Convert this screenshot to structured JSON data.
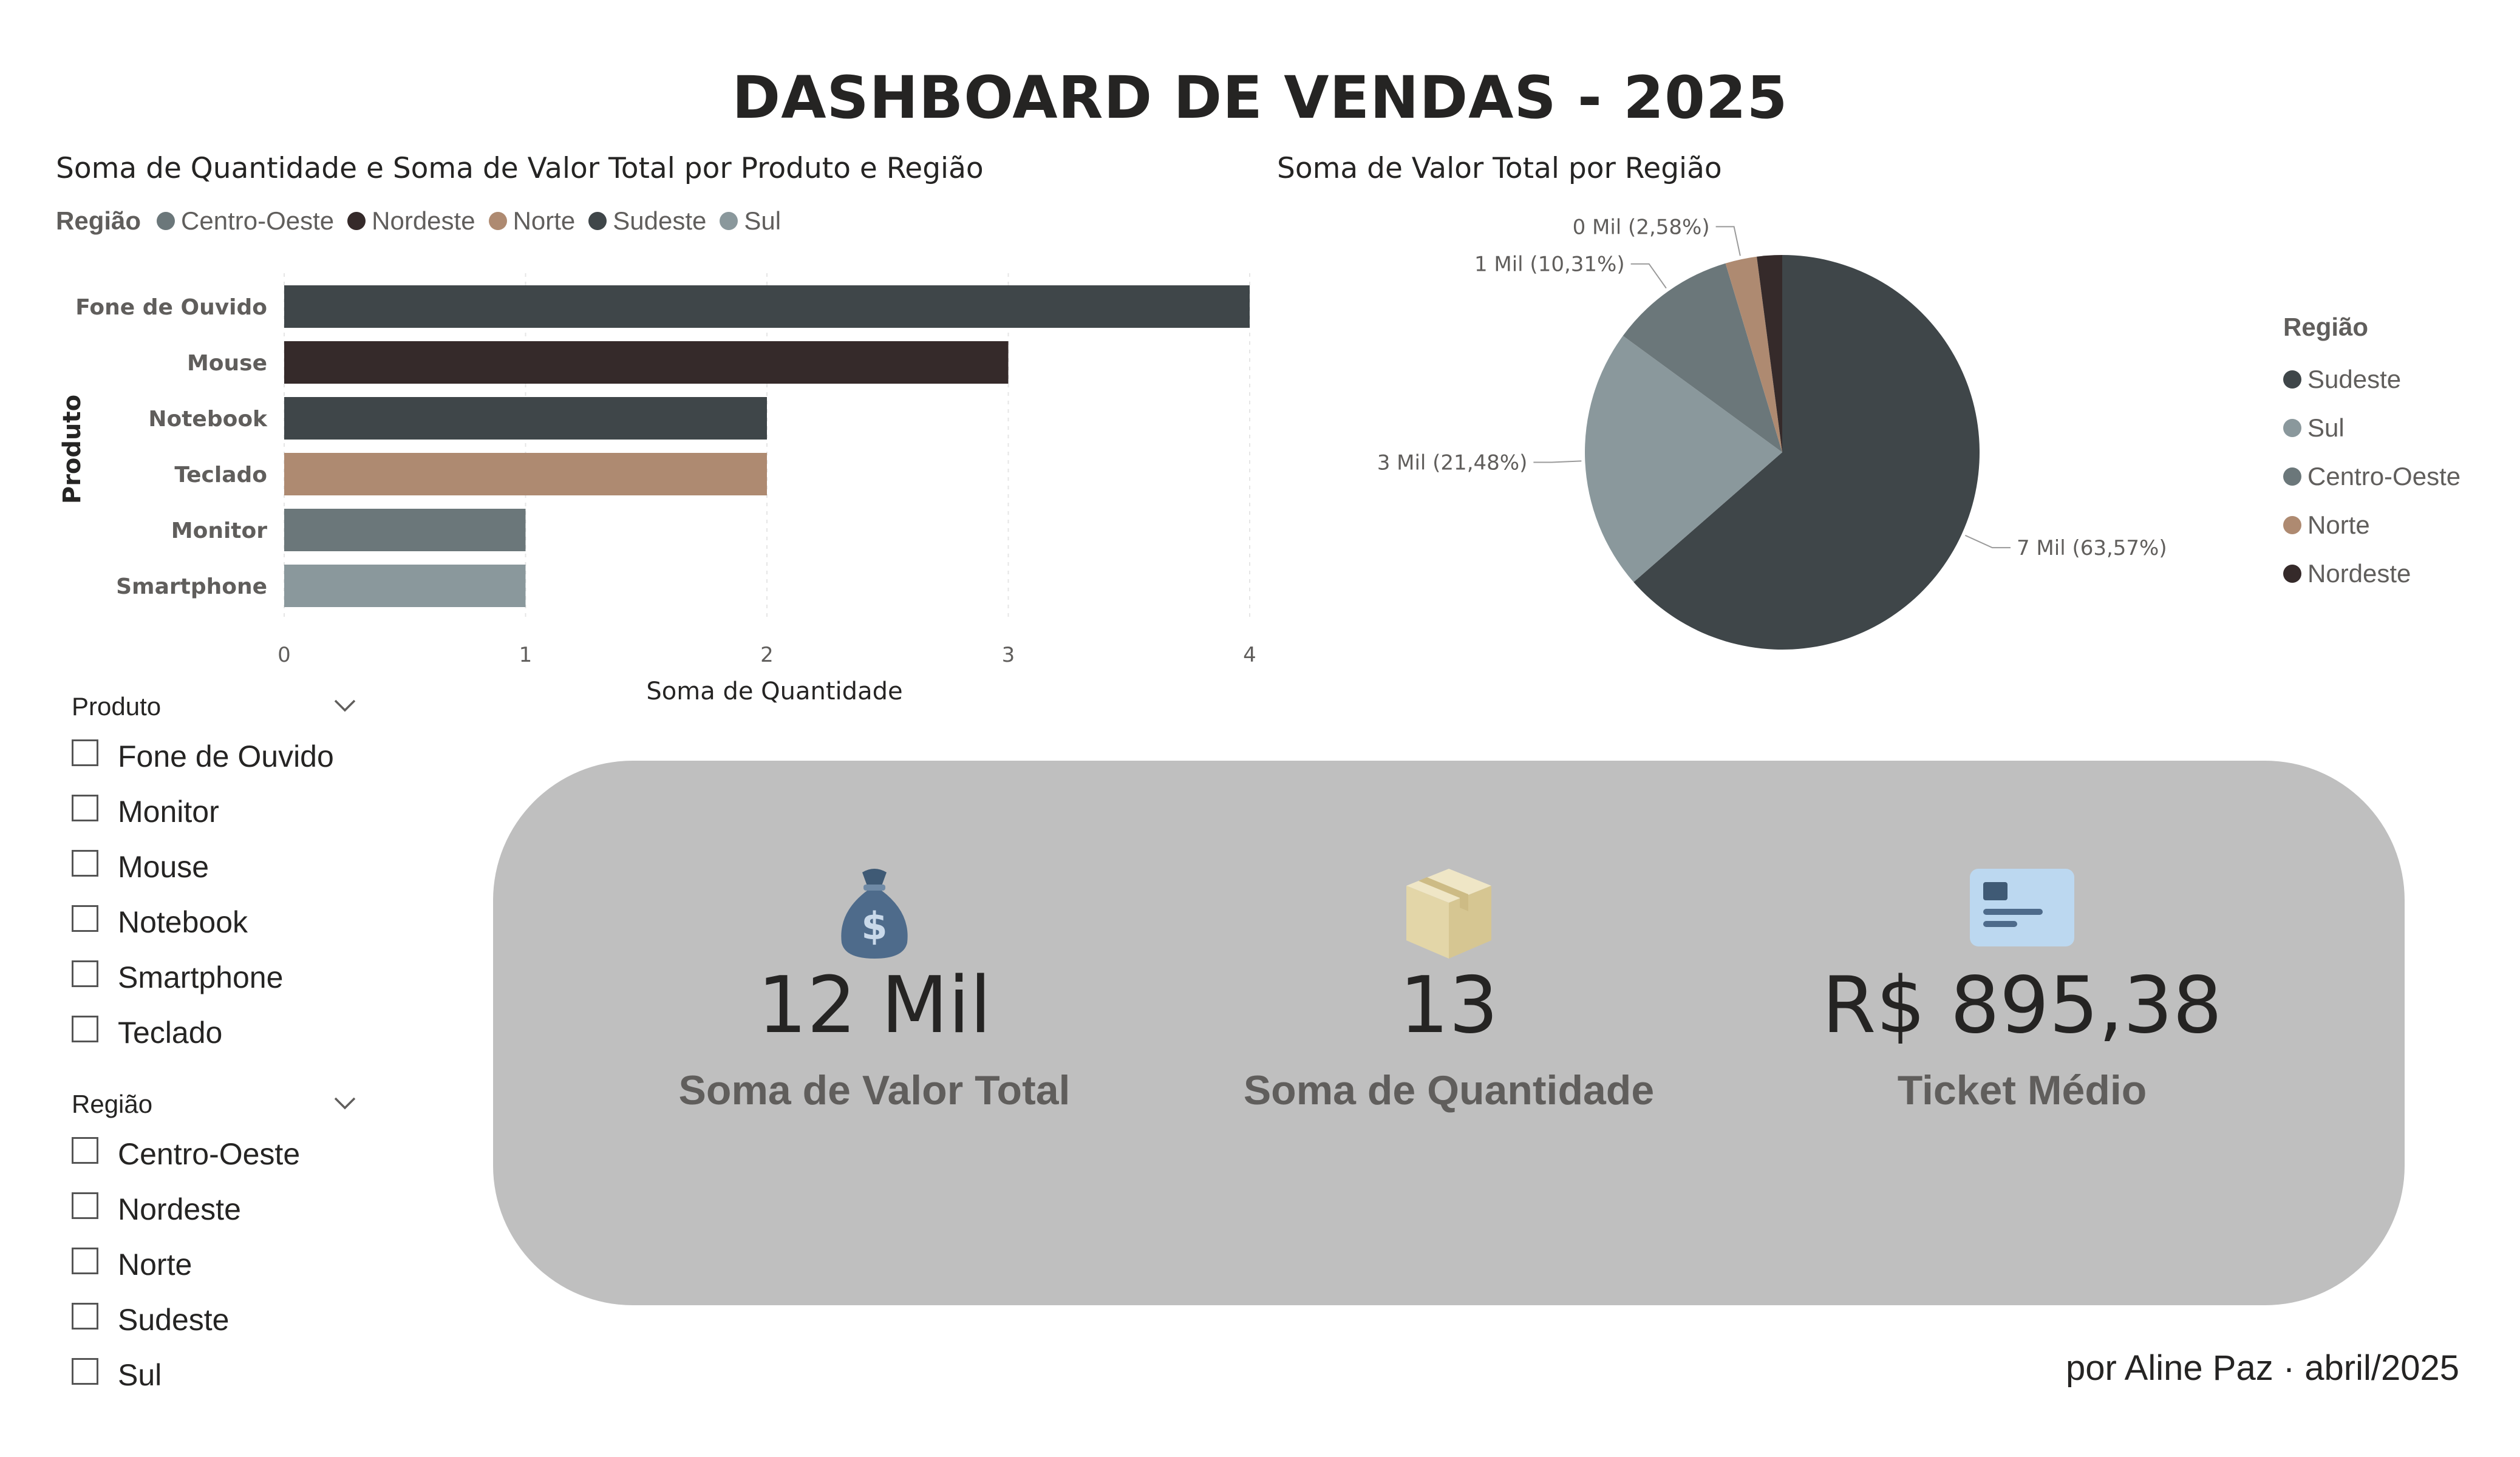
{
  "title": "DASHBOARD DE VENDAS - 2025",
  "colors": {
    "Sudeste": "#3f4649",
    "Sul": "#8a989c",
    "Centro-Oeste": "#6b777a",
    "Norte": "#ae8a71",
    "Nordeste": "#352a2a",
    "panel": "#bfbfbf",
    "label": "#605e5c"
  },
  "bar_chart": {
    "title": "Soma de Quantidade e Soma de Valor Total por Produto e Região",
    "legend_title": "Região",
    "legend": [
      {
        "name": "Centro-Oeste",
        "color": "#6b777a"
      },
      {
        "name": "Nordeste",
        "color": "#352a2a"
      },
      {
        "name": "Norte",
        "color": "#ae8a71"
      },
      {
        "name": "Sudeste",
        "color": "#3f4649"
      },
      {
        "name": "Sul",
        "color": "#8a989c"
      }
    ]
  },
  "pie_chart": {
    "title": "Soma de Valor Total por Região",
    "legend_title": "Região",
    "legend": [
      {
        "name": "Sudeste",
        "color": "#3f4649"
      },
      {
        "name": "Sul",
        "color": "#8a989c"
      },
      {
        "name": "Centro-Oeste",
        "color": "#6b777a"
      },
      {
        "name": "Norte",
        "color": "#ae8a71"
      },
      {
        "name": "Nordeste",
        "color": "#352a2a"
      }
    ]
  },
  "chart_data": [
    {
      "type": "bar",
      "orientation": "horizontal",
      "title": "Soma de Quantidade e Soma de Valor Total por Produto e Região",
      "xlabel": "Soma de Quantidade",
      "ylabel": "Produto",
      "categories": [
        "Fone de Ouvido",
        "Mouse",
        "Notebook",
        "Teclado",
        "Monitor",
        "Smartphone"
      ],
      "values": [
        4,
        3,
        2,
        2,
        1,
        1
      ],
      "bar_regions": [
        "Sudeste",
        "Nordeste",
        "Sudeste",
        "Norte",
        "Centro-Oeste",
        "Sul"
      ],
      "xlim": [
        0,
        4
      ],
      "xticks": [
        "0",
        "1",
        "2",
        "3",
        "4"
      ],
      "grid": true,
      "legend_position": "top-left"
    },
    {
      "type": "pie",
      "title": "Soma de Valor Total por Região",
      "slices": [
        {
          "name": "Sudeste",
          "value": 63.57,
          "label": "7 Mil (63,57%)"
        },
        {
          "name": "Sul",
          "value": 21.48,
          "label": "3 Mil (21,48%)"
        },
        {
          "name": "Centro-Oeste",
          "value": 10.31,
          "label": "1 Mil (10,31%)"
        },
        {
          "name": "Norte",
          "value": 2.58,
          "label": "0 Mil (2,58%)"
        },
        {
          "name": "Nordeste",
          "value": 2.06,
          "label": ""
        }
      ],
      "legend_position": "right"
    }
  ],
  "slicers": {
    "produto": {
      "title": "Produto",
      "items": [
        "Fone de Ouvido",
        "Monitor",
        "Mouse",
        "Notebook",
        "Smartphone",
        "Teclado"
      ]
    },
    "regiao": {
      "title": "Região",
      "items": [
        "Centro-Oeste",
        "Nordeste",
        "Norte",
        "Sudeste",
        "Sul"
      ]
    }
  },
  "kpis": [
    {
      "icon": "money-bag-icon",
      "value": "12 Mil",
      "label": "Soma de Valor Total"
    },
    {
      "icon": "package-box-icon",
      "value": "13",
      "label": "Soma de Quantidade"
    },
    {
      "icon": "id-card-icon",
      "value": "R$ 895,38",
      "label": "Ticket Médio"
    }
  ],
  "footer": "por Aline Paz · abril/2025"
}
